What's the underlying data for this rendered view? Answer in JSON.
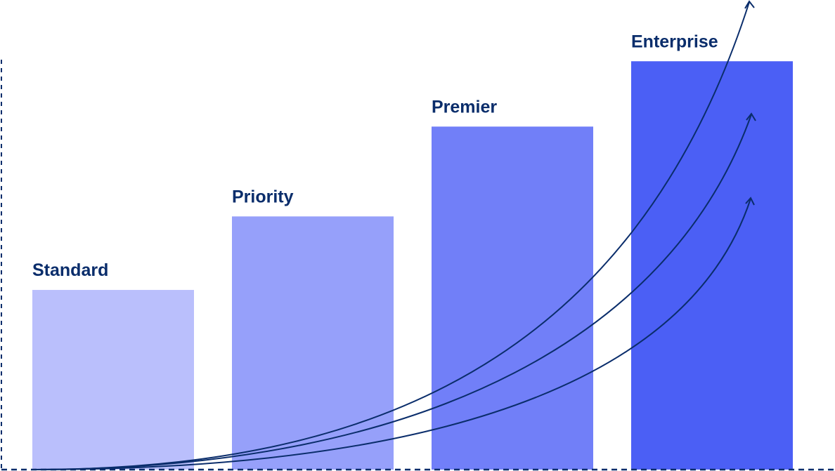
{
  "chart_data": {
    "type": "bar",
    "title": "",
    "xlabel": "",
    "ylabel": "",
    "categories": [
      "Standard",
      "Priority",
      "Premier",
      "Enterprise"
    ],
    "values": [
      44,
      62,
      84,
      100
    ],
    "ylim": [
      0,
      115
    ],
    "grid": false,
    "legend": "none",
    "annotations": [
      "three upward-curving growth arrows"
    ],
    "colors": {
      "bars": [
        "#babffc",
        "#96a0fa",
        "#717ff8",
        "#4b5ff5"
      ],
      "text": "#0a2d6b",
      "axes": "#0a2d6b",
      "arrows": "#0a2d6b"
    }
  }
}
